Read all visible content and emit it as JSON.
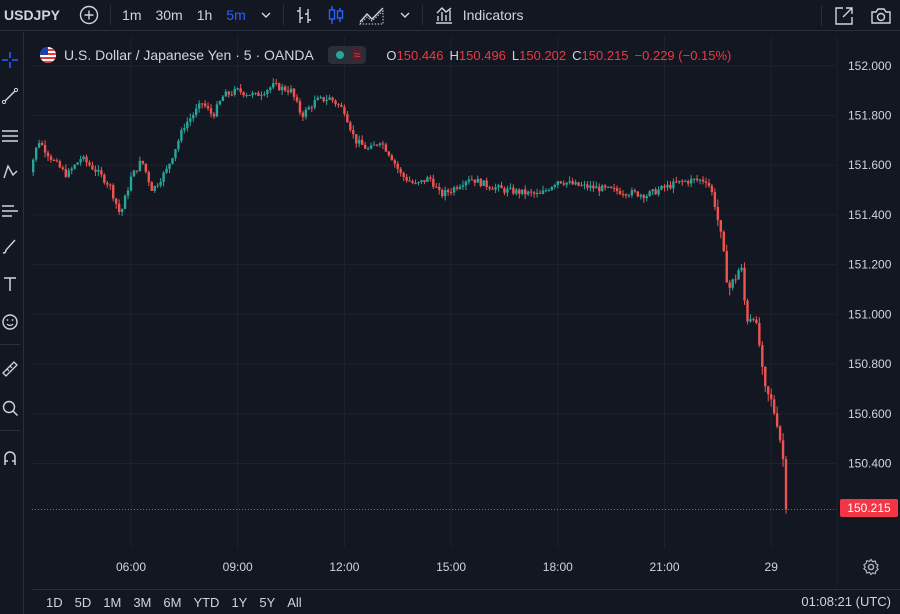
{
  "toolbar": {
    "symbol": "USDJPY",
    "intervals": [
      {
        "label": "1m",
        "active": false
      },
      {
        "label": "30m",
        "active": false
      },
      {
        "label": "1h",
        "active": false
      },
      {
        "label": "5m",
        "active": true
      }
    ],
    "indicators_label": "Indicators",
    "icons": [
      "add-symbol-icon",
      "chevron-down-icon",
      "bar-chart-icon",
      "candles-icon",
      "area-chart-icon",
      "chevron-down-icon",
      "indicators-icon",
      "fullscreen-icon",
      "camera-icon"
    ]
  },
  "left_tools": [
    "crosshair-icon",
    "trendline-icon",
    "fib-icon",
    "pattern-icon",
    "forecast-icon",
    "brush-icon",
    "text-icon",
    "emoji-icon",
    "ruler-icon",
    "zoom-icon",
    "magnet-icon"
  ],
  "legend": {
    "title": "U.S. Dollar / Japanese Yen · 5 · OANDA",
    "status_wave": "≈",
    "open_label": "O",
    "open": "150.446",
    "high_label": "H",
    "high": "150.496",
    "low_label": "L",
    "low": "150.202",
    "close_label": "C",
    "close": "150.215",
    "change": "−0.229 (−0.15%)"
  },
  "last_price_tag": "150.215",
  "bottom": {
    "ranges": [
      "1D",
      "5D",
      "1M",
      "3M",
      "6M",
      "YTD",
      "1Y",
      "5Y",
      "All"
    ],
    "clock": "01:08:21 (UTC)"
  },
  "chart_data": {
    "type": "candlestick",
    "up_color": "#26a69a",
    "down_color": "#ef5350",
    "y_ticks": [
      "152.000",
      "151.800",
      "151.600",
      "151.400",
      "151.200",
      "151.000",
      "150.800",
      "150.600",
      "150.400"
    ],
    "x_ticks": [
      "06:00",
      "09:00",
      "12:00",
      "15:00",
      "18:00",
      "21:00",
      "29"
    ],
    "ylim": [
      150.06,
      152.12
    ],
    "last_price": 150.215,
    "price_path": [
      [
        3.0,
        151.5
      ],
      [
        3.4,
        151.7
      ],
      [
        3.8,
        151.62
      ],
      [
        4.2,
        151.56
      ],
      [
        4.6,
        151.63
      ],
      [
        5.0,
        151.58
      ],
      [
        5.4,
        151.52
      ],
      [
        5.7,
        151.4
      ],
      [
        6.0,
        151.55
      ],
      [
        6.3,
        151.62
      ],
      [
        6.6,
        151.5
      ],
      [
        7.0,
        151.58
      ],
      [
        7.5,
        151.76
      ],
      [
        8.0,
        151.85
      ],
      [
        8.3,
        151.8
      ],
      [
        8.6,
        151.88
      ],
      [
        9.0,
        151.9
      ],
      [
        9.5,
        151.88
      ],
      [
        10.0,
        151.92
      ],
      [
        10.5,
        151.9
      ],
      [
        10.8,
        151.8
      ],
      [
        11.2,
        151.86
      ],
      [
        11.6,
        151.87
      ],
      [
        12.0,
        151.82
      ],
      [
        12.3,
        151.7
      ],
      [
        12.7,
        151.66
      ],
      [
        13.0,
        151.7
      ],
      [
        13.3,
        151.64
      ],
      [
        13.6,
        151.56
      ],
      [
        14.0,
        151.52
      ],
      [
        14.4,
        151.55
      ],
      [
        14.7,
        151.48
      ],
      [
        15.0,
        151.5
      ],
      [
        15.5,
        151.55
      ],
      [
        16.0,
        151.52
      ],
      [
        16.5,
        151.5
      ],
      [
        17.0,
        151.49
      ],
      [
        17.5,
        151.48
      ],
      [
        18.0,
        151.54
      ],
      [
        18.5,
        151.52
      ],
      [
        19.0,
        151.51
      ],
      [
        19.5,
        151.5
      ],
      [
        20.0,
        151.49
      ],
      [
        20.5,
        151.48
      ],
      [
        21.0,
        151.51
      ],
      [
        21.4,
        151.53
      ],
      [
        21.8,
        151.54
      ],
      [
        22.2,
        151.54
      ],
      [
        22.4,
        151.46
      ],
      [
        22.6,
        151.3
      ],
      [
        22.8,
        151.1
      ],
      [
        23.0,
        151.15
      ],
      [
        23.15,
        151.2
      ],
      [
        23.3,
        150.98
      ],
      [
        23.5,
        151.0
      ],
      [
        23.65,
        150.9
      ],
      [
        23.8,
        150.7
      ],
      [
        24.0,
        150.65
      ],
      [
        24.2,
        150.55
      ],
      [
        24.35,
        150.4
      ],
      [
        24.45,
        150.215
      ]
    ]
  }
}
